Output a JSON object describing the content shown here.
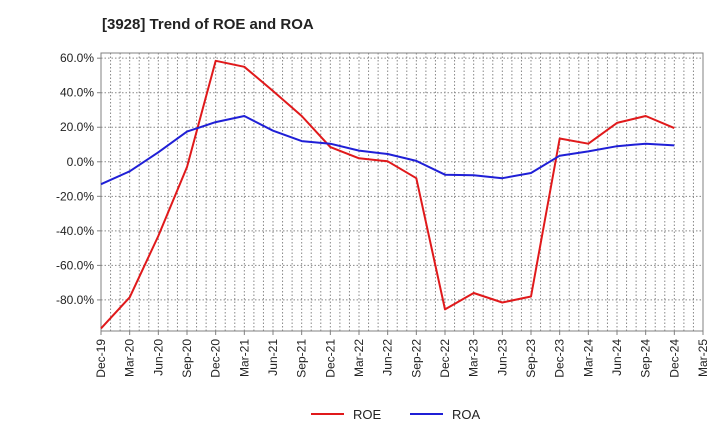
{
  "chart_data": {
    "type": "line",
    "title": "[3928]  Trend of ROE and ROA",
    "xlabel": "",
    "ylabel": "",
    "x_ticks": [
      "Dec-19",
      "Mar-20",
      "Jun-20",
      "Sep-20",
      "Dec-20",
      "Mar-21",
      "Jun-21",
      "Sep-21",
      "Dec-21",
      "Mar-22",
      "Jun-22",
      "Sep-22",
      "Dec-22",
      "Mar-23",
      "Jun-23",
      "Sep-23",
      "Dec-23",
      "Mar-24",
      "Jun-24",
      "Sep-24",
      "Dec-24",
      "Mar-25"
    ],
    "y_ticks": [
      "60.0%",
      "40.0%",
      "20.0%",
      "0.0%",
      "-20.0%",
      "-40.0%",
      "-60.0%",
      "-80.0%"
    ],
    "y_tick_values": [
      60,
      40,
      20,
      0,
      -20,
      -40,
      -60,
      -80
    ],
    "ylim": [
      -98,
      63
    ],
    "grid": true,
    "legend_position": "bottom",
    "series": [
      {
        "name": "ROE",
        "color": "#e0191b",
        "x": [
          "Dec-19",
          "Mar-20",
          "Jun-20",
          "Sep-20",
          "Dec-20",
          "Mar-21",
          "Jun-21",
          "Sep-21",
          "Dec-21",
          "Mar-22",
          "Jun-22",
          "Sep-22",
          "Dec-22",
          "Mar-23",
          "Jun-23",
          "Sep-23",
          "Dec-23",
          "Mar-24",
          "Jun-24",
          "Sep-24",
          "Dec-24"
        ],
        "values": [
          -96.5,
          -78.5,
          -43,
          -3,
          58.5,
          55,
          41,
          26.5,
          8.5,
          2,
          0.3,
          -9.5,
          -85.5,
          -76,
          -81.5,
          -78,
          13.5,
          10.5,
          22.5,
          26.5,
          19.5
        ]
      },
      {
        "name": "ROA",
        "color": "#1f1fd6",
        "x": [
          "Dec-19",
          "Mar-20",
          "Jun-20",
          "Sep-20",
          "Dec-20",
          "Mar-21",
          "Jun-21",
          "Sep-21",
          "Dec-21",
          "Mar-22",
          "Jun-22",
          "Sep-22",
          "Dec-22",
          "Mar-23",
          "Jun-23",
          "Sep-23",
          "Dec-23",
          "Mar-24",
          "Jun-24",
          "Sep-24",
          "Dec-24"
        ],
        "values": [
          -13,
          -5.5,
          5.5,
          17.5,
          23,
          26.5,
          18,
          12,
          10.5,
          6.5,
          4.5,
          0.5,
          -7.5,
          -7.8,
          -9.5,
          -6.5,
          3.5,
          6,
          9,
          10.5,
          9.5
        ]
      }
    ]
  }
}
